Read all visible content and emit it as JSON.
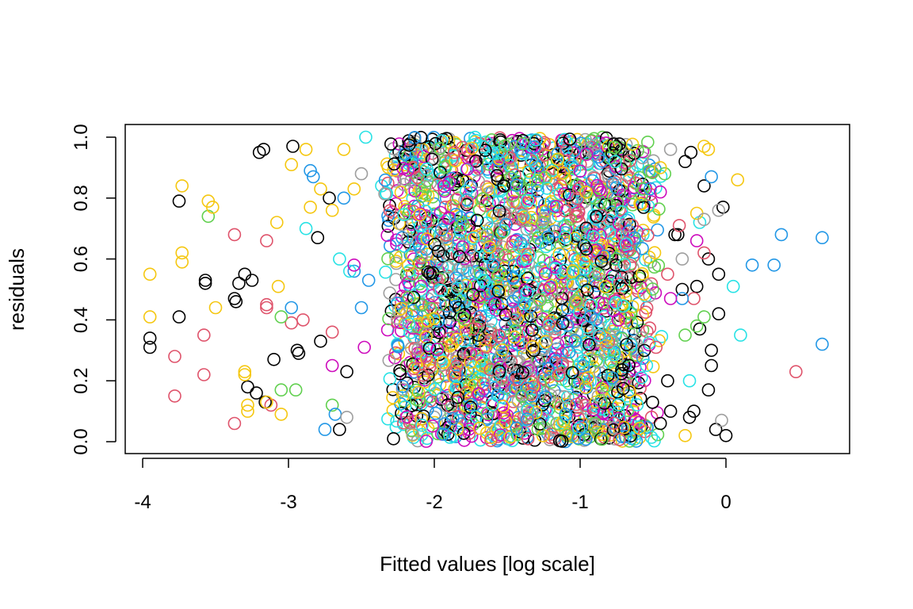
{
  "chart_data": {
    "type": "scatter",
    "title": "",
    "xlabel": "Fitted values [log scale]",
    "ylabel": "residuals",
    "xlim": [
      -4.0,
      0.7
    ],
    "ylim": [
      0.0,
      1.0
    ],
    "x_ticks": [
      -4,
      -3,
      -2,
      -1,
      0
    ],
    "x_tick_labels": [
      "-4",
      "-3",
      "-2",
      "-1",
      "0"
    ],
    "y_ticks": [
      0.0,
      0.2,
      0.4,
      0.6,
      0.8,
      1.0
    ],
    "y_tick_labels": [
      "0.0",
      "0.2",
      "0.4",
      "0.6",
      "0.8",
      "1.0"
    ],
    "grid": false,
    "legend": "none",
    "marker": "open-circle",
    "colors": [
      "#000000",
      "#DF536B",
      "#61D04F",
      "#2297E6",
      "#28E2E5",
      "#CD0BBC",
      "#F5C710",
      "#9E9E9E"
    ],
    "series": [
      {
        "color": "#000000",
        "x": [
          -3.95,
          -3.95,
          -3.75,
          -3.75,
          -3.57,
          -3.57,
          -3.37,
          -3.36,
          -3.34,
          -3.3,
          -3.28,
          -3.25,
          -3.22,
          -3.2,
          -3.17,
          -3.16,
          -3.1,
          -2.97,
          -2.94,
          -2.93,
          -2.8,
          -2.78,
          -2.72,
          -2.65,
          -2.6,
          -0.05,
          0.0,
          -0.1,
          -0.12,
          -0.18,
          -0.22,
          -0.25,
          -0.3,
          -0.35,
          -0.4,
          -0.07,
          -0.02,
          -0.15,
          -0.28,
          -0.33,
          -0.2,
          -0.1,
          -0.38,
          -0.45,
          -0.12,
          -0.05,
          -0.24
        ],
        "y": [
          0.34,
          0.31,
          0.79,
          0.41,
          0.53,
          0.52,
          0.47,
          0.46,
          0.52,
          0.55,
          0.18,
          0.53,
          0.16,
          0.95,
          0.96,
          0.13,
          0.27,
          0.97,
          0.3,
          0.29,
          0.67,
          0.33,
          0.8,
          0.04,
          0.23,
          0.55,
          0.02,
          0.25,
          0.17,
          0.37,
          0.1,
          0.08,
          0.5,
          0.68,
          0.2,
          0.04,
          0.77,
          0.84,
          0.92,
          0.68,
          0.51,
          0.3,
          0.1,
          0.06,
          0.6,
          0.42,
          0.95
        ]
      },
      {
        "color": "#DF536B",
        "x": [
          -3.78,
          -3.78,
          -3.58,
          -3.58,
          -3.37,
          -3.37,
          -3.15,
          -3.15,
          -3.15,
          -3.12,
          -2.98,
          -2.9,
          -2.7,
          -0.48,
          0.48,
          -0.15,
          -0.4,
          -0.32,
          -0.22
        ],
        "y": [
          0.28,
          0.15,
          0.35,
          0.22,
          0.68,
          0.06,
          0.66,
          0.45,
          0.44,
          0.12,
          0.39,
          0.4,
          0.36,
          0.31,
          0.23,
          0.62,
          0.55,
          0.71,
          0.47
        ]
      },
      {
        "color": "#61D04F",
        "x": [
          -3.55,
          -3.05,
          -3.05,
          -2.95,
          -2.7,
          -0.2,
          -0.28,
          -0.42,
          -0.15
        ],
        "y": [
          0.74,
          0.41,
          0.17,
          0.17,
          0.12,
          0.38,
          0.35,
          0.88,
          0.41
        ]
      },
      {
        "color": "#2297E6",
        "x": [
          -2.98,
          -2.85,
          -2.83,
          -2.75,
          -2.68,
          -2.62,
          -2.55,
          -2.5,
          -2.45,
          0.18,
          0.33,
          0.38,
          0.66,
          0.66,
          -0.1,
          -0.3
        ],
        "y": [
          0.44,
          0.89,
          0.87,
          0.04,
          0.09,
          0.8,
          0.56,
          0.44,
          0.53,
          0.58,
          0.58,
          0.68,
          0.67,
          0.32,
          0.87,
          0.47
        ]
      },
      {
        "color": "#28E2E5",
        "x": [
          -2.88,
          -2.65,
          -2.58,
          -2.47,
          0.05,
          0.1,
          -0.18,
          -0.25
        ],
        "y": [
          0.7,
          0.6,
          0.56,
          1.0,
          0.51,
          0.35,
          0.72,
          0.2
        ]
      },
      {
        "color": "#CD0BBC",
        "x": [
          -2.7,
          -2.55,
          -2.48,
          -0.45,
          -0.38,
          -0.2
        ],
        "y": [
          0.25,
          0.58,
          0.31,
          0.82,
          0.47,
          0.66
        ]
      },
      {
        "color": "#F5C710",
        "x": [
          -3.95,
          -3.95,
          -3.73,
          -3.73,
          -3.73,
          -3.55,
          -3.52,
          -3.5,
          -3.3,
          -3.3,
          -3.28,
          -3.28,
          -3.15,
          -3.08,
          -3.07,
          -3.05,
          -2.98,
          -2.88,
          -2.85,
          -2.78,
          -2.7,
          -2.62,
          -2.55,
          0.08,
          -0.15,
          -0.12,
          -0.28,
          -0.2,
          -0.45
        ],
        "y": [
          0.55,
          0.41,
          0.84,
          0.62,
          0.59,
          0.79,
          0.77,
          0.44,
          0.23,
          0.22,
          0.12,
          0.1,
          0.13,
          0.72,
          0.51,
          0.09,
          0.91,
          0.96,
          0.77,
          0.83,
          0.76,
          0.96,
          0.83,
          0.86,
          0.97,
          0.96,
          0.02,
          0.75,
          0.9
        ]
      },
      {
        "color": "#9E9E9E",
        "x": [
          -2.6,
          -2.5,
          -0.38,
          -0.05,
          -0.03,
          -0.3,
          -0.15
        ],
        "y": [
          0.08,
          0.88,
          0.96,
          0.76,
          0.07,
          0.6,
          0.73
        ]
      }
    ]
  }
}
